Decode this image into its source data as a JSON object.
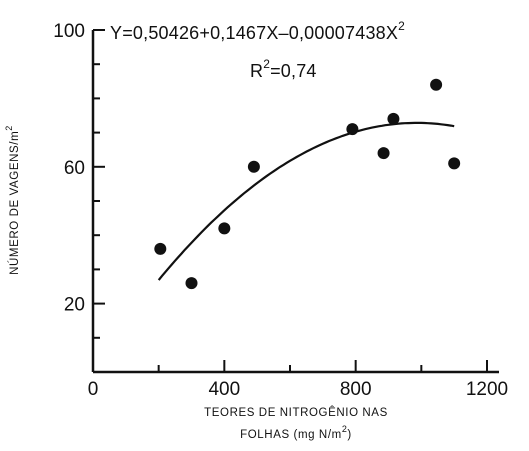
{
  "chart_data": {
    "type": "scatter",
    "title": "",
    "xlabel_line1": "TEORES DE NITROGÊNIO NAS",
    "xlabel_line2": "FOLHAS (mg N/m",
    "xlabel_line2_sup": "2",
    "ylabel": "NÚMERO DE VAGENS/m",
    "ylabel_sup": "2",
    "equation": "Y=0,50426+0,1467X–0,00007438X",
    "equation_sup": "2",
    "r2_prefix": "R",
    "r2_sup": "2",
    "r2_value": "=0,74",
    "xlim": [
      0,
      1200
    ],
    "ylim": [
      0,
      100
    ],
    "x_ticks": [
      0,
      400,
      800,
      1200
    ],
    "x_tick_labels": [
      "0",
      "400",
      "800",
      "1200"
    ],
    "y_ticks": [
      20,
      60,
      100
    ],
    "y_tick_labels": [
      "20",
      "60",
      "100"
    ],
    "points": [
      {
        "x": 205,
        "y": 36
      },
      {
        "x": 300,
        "y": 26
      },
      {
        "x": 400,
        "y": 42
      },
      {
        "x": 490,
        "y": 60
      },
      {
        "x": 790,
        "y": 71
      },
      {
        "x": 885,
        "y": 64
      },
      {
        "x": 915,
        "y": 74
      },
      {
        "x": 1045,
        "y": 84
      },
      {
        "x": 1100,
        "y": 61
      }
    ],
    "fit": {
      "type": "polynomial",
      "coefficients": [
        0.50426,
        0.1467,
        -7.438e-05
      ],
      "x_range": [
        200,
        1100
      ]
    },
    "grid": false,
    "legend": "none"
  }
}
